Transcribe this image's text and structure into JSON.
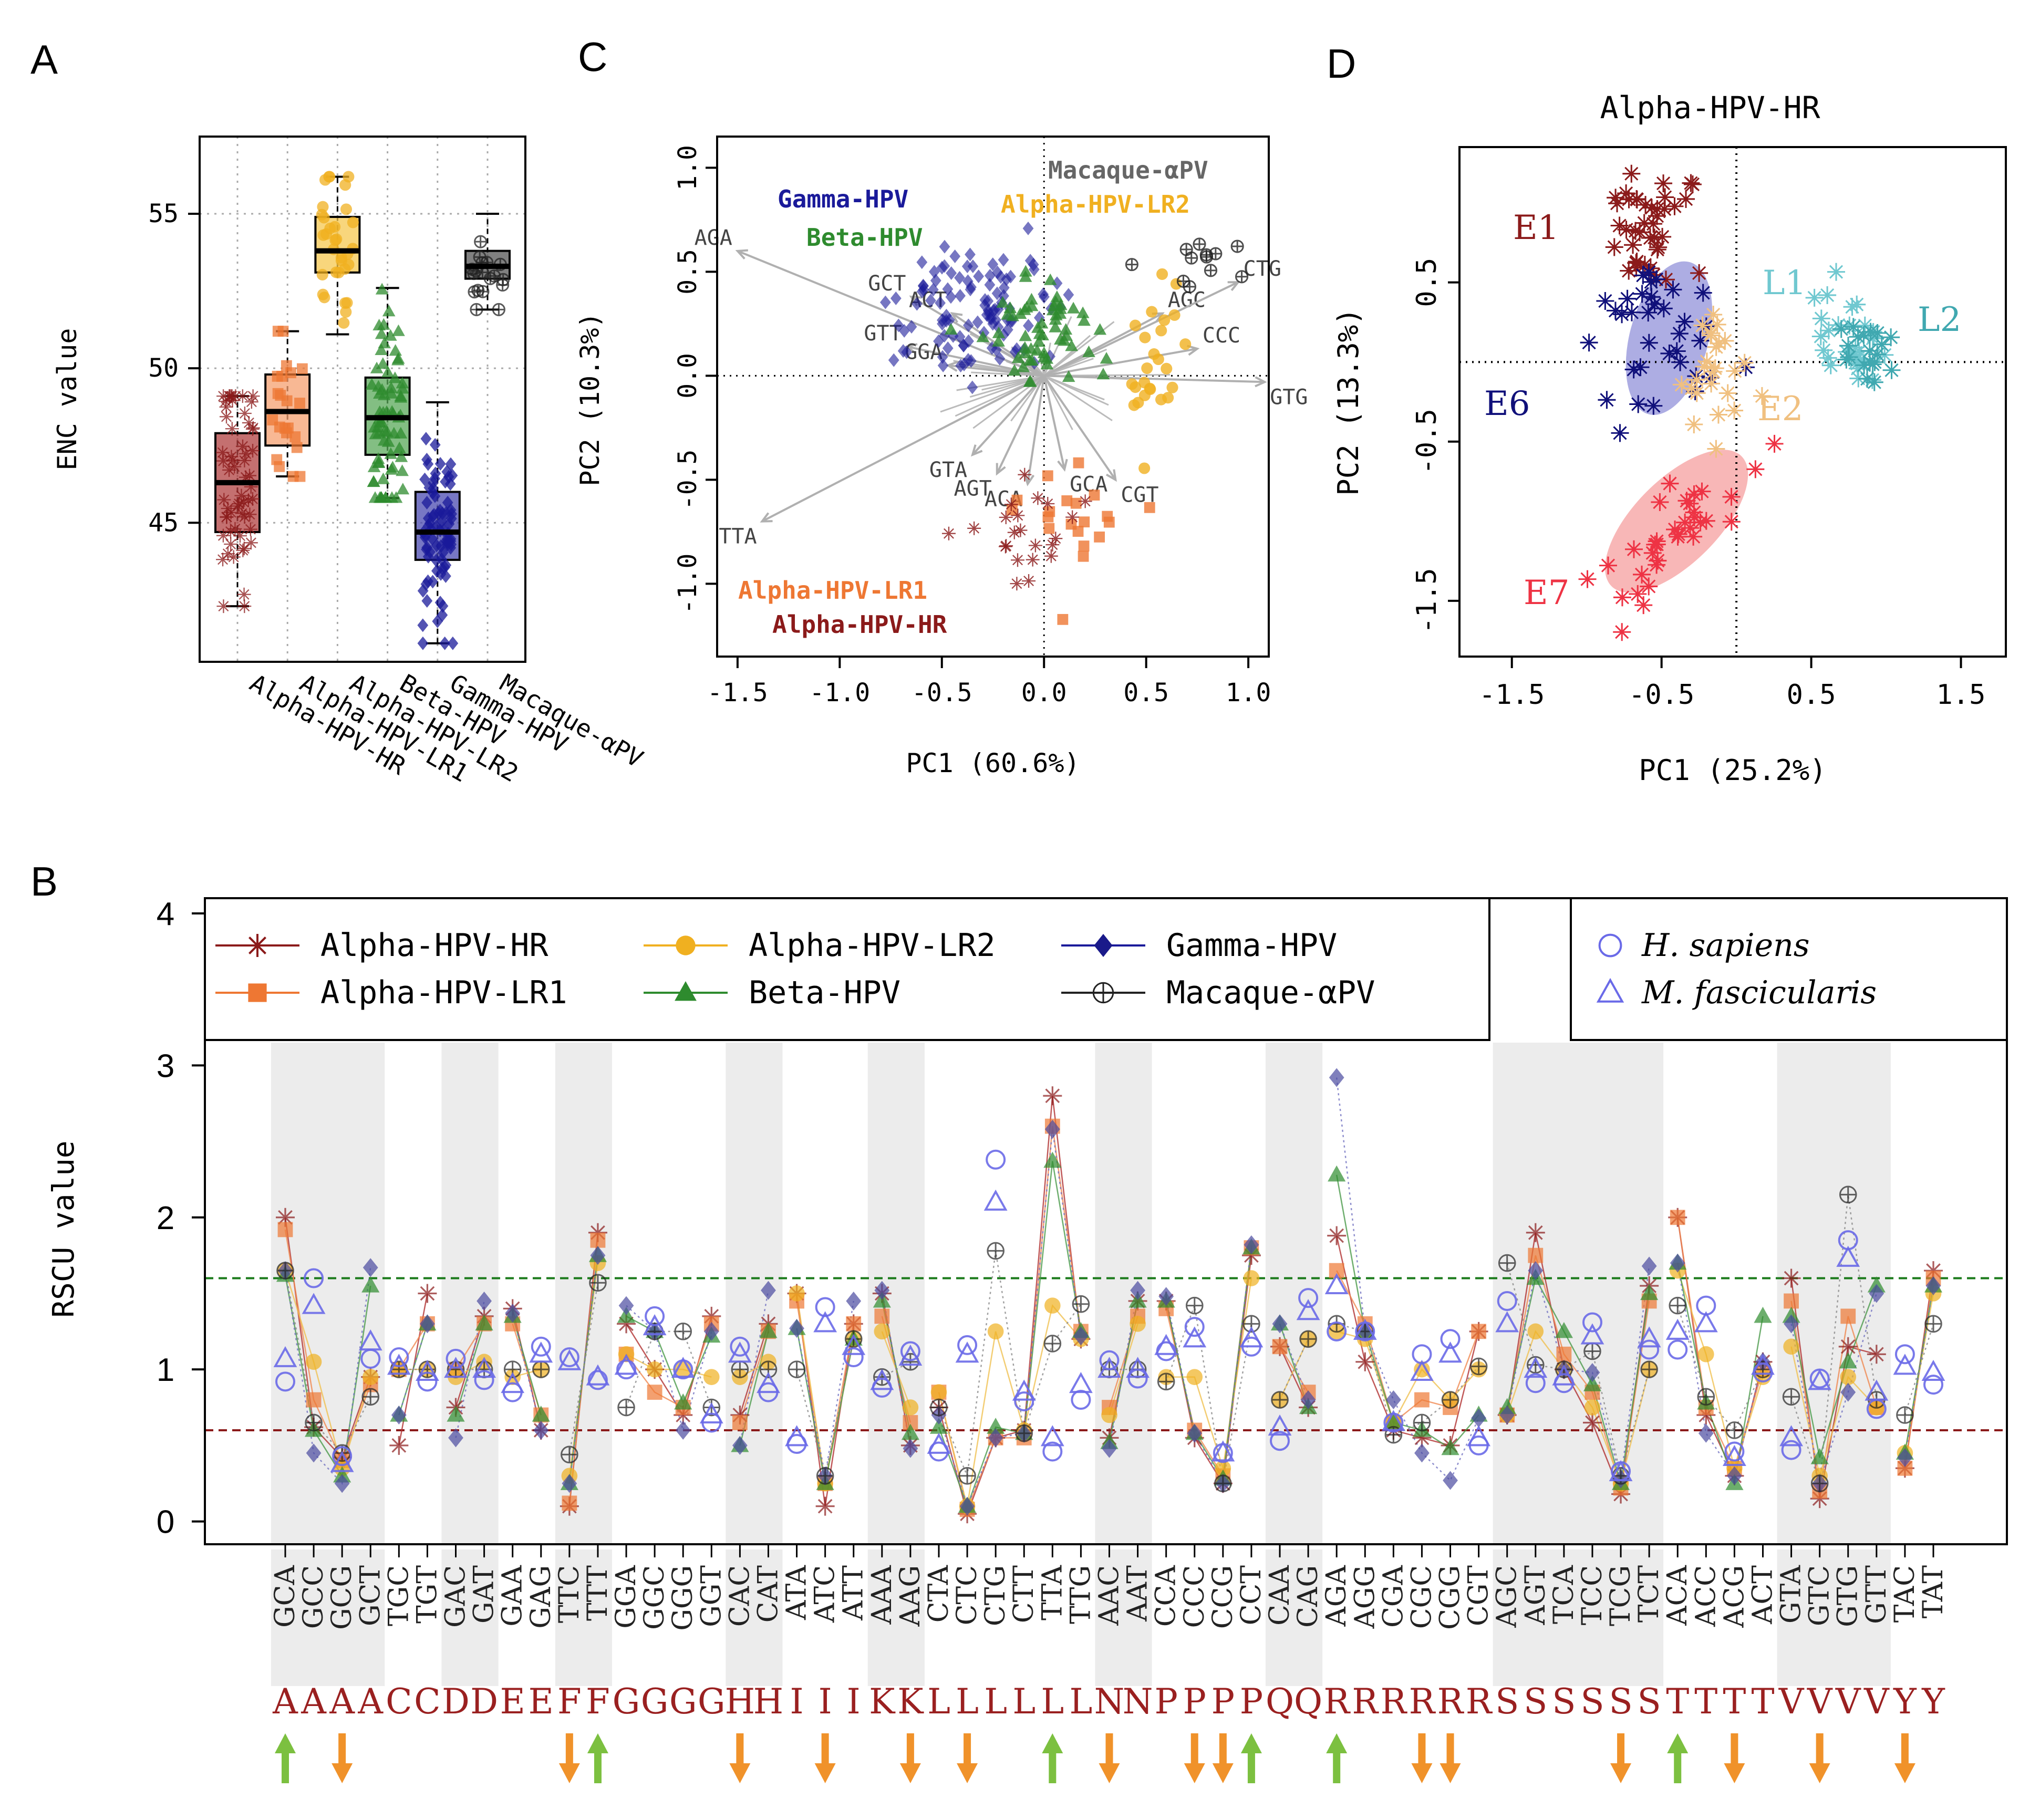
{
  "panels": {
    "A": "A",
    "B": "B",
    "C": "C",
    "D": "D"
  },
  "colors": {
    "hr": "#8b1a1a",
    "lr1": "#ee7733",
    "lr2": "#f0b020",
    "beta": "#2e8b2e",
    "gamma": "#1a1a9a",
    "mac": "#222222",
    "hs": "#6a6ae8",
    "e1": "#8b1a1a",
    "e6": "#10107a",
    "e7": "#ee3344",
    "e2": "#f0c080",
    "l1": "#70c8d0",
    "l2": "#40a8b0",
    "up": "#7cc040",
    "down": "#f0922a"
  },
  "panel_a": {
    "chart_data": {
      "type": "boxplot",
      "ylabel": "ENC value",
      "ylim": [
        40.5,
        57.5
      ],
      "yticks": [
        "45",
        "50",
        "55"
      ],
      "categories": [
        "Alpha-HPV-HR",
        "Alpha-HPV-LR1",
        "Alpha-HPV-LR2",
        "Beta-HPV",
        "Gamma-HPV",
        "Macaque-αPV"
      ],
      "series": [
        {
          "name": "Alpha-HPV-HR",
          "q1": 44.7,
          "median": 46.3,
          "q3": 47.9,
          "whisker_low": 42.3,
          "whisker_high": 49.1
        },
        {
          "name": "Alpha-HPV-LR1",
          "q1": 47.5,
          "median": 48.6,
          "q3": 49.8,
          "whisker_low": 46.5,
          "whisker_high": 51.2
        },
        {
          "name": "Alpha-HPV-LR2",
          "q1": 53.1,
          "median": 53.8,
          "q3": 54.9,
          "whisker_low": 51.1,
          "whisker_high": 56.2
        },
        {
          "name": "Beta-HPV",
          "q1": 47.2,
          "median": 48.4,
          "q3": 49.7,
          "whisker_low": 45.8,
          "whisker_high": 52.6
        },
        {
          "name": "Gamma-HPV",
          "q1": 43.8,
          "median": 44.7,
          "q3": 46.0,
          "whisker_low": 41.1,
          "whisker_high": 48.9
        },
        {
          "name": "Macaque-αPV",
          "q1": 52.9,
          "median": 53.3,
          "q3": 53.8,
          "whisker_low": 51.9,
          "whisker_high": 55.0
        }
      ]
    }
  },
  "panel_c": {
    "chart_data": {
      "type": "scatter",
      "xlabel": "PC1 (60.6%)",
      "ylabel": "PC2 (10.3%)",
      "xlim": [
        -1.6,
        1.1
      ],
      "ylim": [
        -1.35,
        1.15
      ],
      "xticks": [
        "-1.5",
        "-1.0",
        "-0.5",
        "0.0",
        "0.5",
        "1.0"
      ],
      "yticks": [
        "-1.0",
        "-0.5",
        "0.0",
        "0.5",
        "1.0"
      ],
      "group_labels": [
        "Gamma-HPV",
        "Beta-HPV",
        "Macaque-αPV",
        "Alpha-HPV-LR2",
        "Alpha-HPV-LR1",
        "Alpha-HPV-HR"
      ],
      "groups": [
        {
          "name": "Gamma-HPV",
          "cx": -0.35,
          "cy": 0.3,
          "sx": 0.2,
          "sy": 0.15,
          "n": 110
        },
        {
          "name": "Beta-HPV",
          "cx": -0.02,
          "cy": 0.2,
          "sx": 0.13,
          "sy": 0.13,
          "n": 60
        },
        {
          "name": "Alpha-HPV-LR2",
          "cx": 0.57,
          "cy": 0.0,
          "sx": 0.08,
          "sy": 0.2,
          "n": 25
        },
        {
          "name": "Macaque-αPV",
          "cx": 0.8,
          "cy": 0.55,
          "sx": 0.12,
          "sy": 0.08,
          "n": 12
        },
        {
          "name": "Alpha-HPV-LR1",
          "cx": 0.12,
          "cy": -0.65,
          "sx": 0.18,
          "sy": 0.15,
          "n": 20
        },
        {
          "name": "Alpha-HPV-HR",
          "cx": -0.05,
          "cy": -0.78,
          "sx": 0.13,
          "sy": 0.12,
          "n": 22
        }
      ],
      "arrows": [
        {
          "codon": "AGA",
          "x": -1.5,
          "y": 0.6
        },
        {
          "codon": "GCT",
          "x": -0.65,
          "y": 0.38
        },
        {
          "codon": "ACT",
          "x": -0.45,
          "y": 0.3
        },
        {
          "codon": "GTT",
          "x": -0.67,
          "y": 0.14
        },
        {
          "codon": "GGA",
          "x": -0.47,
          "y": 0.05
        },
        {
          "codon": "GTA",
          "x": -0.35,
          "y": -0.38
        },
        {
          "codon": "TTA",
          "x": -1.38,
          "y": -0.7
        },
        {
          "codon": "AGT",
          "x": -0.23,
          "y": -0.47
        },
        {
          "codon": "ACA",
          "x": -0.08,
          "y": -0.52
        },
        {
          "codon": "GCA",
          "x": 0.1,
          "y": -0.45
        },
        {
          "codon": "CGT",
          "x": 0.35,
          "y": -0.5
        },
        {
          "codon": "AGC",
          "x": 0.58,
          "y": 0.3
        },
        {
          "codon": "CTG",
          "x": 0.95,
          "y": 0.45
        },
        {
          "codon": "CCC",
          "x": 0.75,
          "y": 0.13
        },
        {
          "codon": "GTG",
          "x": 1.08,
          "y": -0.03
        }
      ]
    }
  },
  "panel_d": {
    "title": "Alpha-HPV-HR",
    "chart_data": {
      "type": "scatter",
      "xlabel": "PC1 (25.2%)",
      "ylabel": "PC2 (13.3%)",
      "xlim": [
        -1.85,
        1.8
      ],
      "ylim": [
        -1.85,
        1.35
      ],
      "xticks": [
        "-1.5",
        "-0.5",
        "0.5",
        "1.5"
      ],
      "yticks": [
        "-1.5",
        "-0.5",
        "0.5"
      ],
      "group_labels": [
        "E1",
        "E6",
        "E7",
        "E2",
        "L1",
        "L2"
      ],
      "groups": [
        {
          "name": "E1",
          "cx": -0.6,
          "cy": 0.85,
          "sx": 0.14,
          "sy": 0.18,
          "n": 40
        },
        {
          "name": "E6",
          "cx": -0.5,
          "cy": 0.15,
          "sx": 0.22,
          "sy": 0.28,
          "n": 35
        },
        {
          "name": "E2",
          "cx": -0.1,
          "cy": -0.1,
          "sx": 0.13,
          "sy": 0.18,
          "n": 25
        },
        {
          "name": "L1",
          "cx": 0.78,
          "cy": 0.15,
          "sx": 0.13,
          "sy": 0.13,
          "n": 30
        },
        {
          "name": "L2",
          "cx": 0.9,
          "cy": 0.05,
          "sx": 0.1,
          "sy": 0.12,
          "n": 20
        },
        {
          "name": "E7",
          "cx": -0.4,
          "cy": -1.1,
          "sx": 0.22,
          "sy": 0.25,
          "n": 35
        }
      ]
    }
  },
  "panel_b": {
    "legend_left": [
      {
        "label": "Alpha-HPV-HR",
        "color": "#8b1a1a",
        "marker": "star"
      },
      {
        "label": "Alpha-HPV-LR1",
        "color": "#ee7733",
        "marker": "square"
      },
      {
        "label": "Alpha-HPV-LR2",
        "color": "#f0b020",
        "marker": "circle"
      },
      {
        "label": "Beta-HPV",
        "color": "#2e8b2e",
        "marker": "triangle"
      },
      {
        "label": "Gamma-HPV",
        "color": "#1a1a9a",
        "marker": "diamond"
      },
      {
        "label": "Macaque-αPV",
        "color": "#222222",
        "marker": "oplus"
      }
    ],
    "legend_right": [
      {
        "label": "H. sapiens",
        "marker": "open-circle"
      },
      {
        "label": "M. fascicularis",
        "marker": "open-triangle"
      }
    ],
    "chart_data": {
      "type": "line",
      "ylabel": "RSCU value",
      "ylim": [
        -0.15,
        4.1
      ],
      "yticks": [
        "0",
        "1",
        "2",
        "3",
        "4"
      ],
      "thresholds": {
        "high": 1.6,
        "low": 0.6
      },
      "codons": [
        "GCA",
        "GCC",
        "GCG",
        "GCT",
        "TGC",
        "TGT",
        "GAC",
        "GAT",
        "GAA",
        "GAG",
        "TTC",
        "TTT",
        "GGA",
        "GGC",
        "GGG",
        "GGT",
        "CAC",
        "CAT",
        "ATA",
        "ATC",
        "ATT",
        "AAA",
        "AAG",
        "CTA",
        "CTC",
        "CTG",
        "CTT",
        "TTA",
        "TTG",
        "AAC",
        "AAT",
        "CCA",
        "CCC",
        "CCG",
        "CCT",
        "CAA",
        "CAG",
        "AGA",
        "AGG",
        "CGA",
        "CGC",
        "CGG",
        "CGT",
        "AGC",
        "AGT",
        "TCA",
        "TCC",
        "TCG",
        "TCT",
        "ACA",
        "ACC",
        "ACG",
        "ACT",
        "GTA",
        "GTC",
        "GTG",
        "GTT",
        "TAC",
        "TAT"
      ],
      "amino_acids": [
        "A",
        "A",
        "A",
        "A",
        "C",
        "C",
        "D",
        "D",
        "E",
        "E",
        "F",
        "F",
        "G",
        "G",
        "G",
        "G",
        "H",
        "H",
        "I",
        "I",
        "I",
        "K",
        "K",
        "L",
        "L",
        "L",
        "L",
        "L",
        "L",
        "N",
        "N",
        "P",
        "P",
        "P",
        "P",
        "Q",
        "Q",
        "R",
        "R",
        "R",
        "R",
        "R",
        "R",
        "S",
        "S",
        "S",
        "S",
        "S",
        "S",
        "T",
        "T",
        "T",
        "T",
        "V",
        "V",
        "V",
        "V",
        "Y",
        "Y"
      ],
      "shaded_amino_acids": [
        "A",
        "D",
        "F",
        "H",
        "K",
        "N",
        "Q",
        "S",
        "V"
      ],
      "arrows": [
        {
          "codon": "GCA",
          "dir": "up"
        },
        {
          "codon": "GCG",
          "dir": "down"
        },
        {
          "codon": "TTC",
          "dir": "down"
        },
        {
          "codon": "TTT",
          "dir": "up"
        },
        {
          "codon": "CAC",
          "dir": "down"
        },
        {
          "codon": "ATC",
          "dir": "down"
        },
        {
          "codon": "AAG",
          "dir": "down"
        },
        {
          "codon": "CTC",
          "dir": "down"
        },
        {
          "codon": "TTA",
          "dir": "up"
        },
        {
          "codon": "AAC",
          "dir": "down"
        },
        {
          "codon": "CCC",
          "dir": "down"
        },
        {
          "codon": "CCG",
          "dir": "down"
        },
        {
          "codon": "CCT",
          "dir": "up"
        },
        {
          "codon": "AGA",
          "dir": "up"
        },
        {
          "codon": "CGC",
          "dir": "down"
        },
        {
          "codon": "CGG",
          "dir": "down"
        },
        {
          "codon": "TCG",
          "dir": "down"
        },
        {
          "codon": "ACA",
          "dir": "up"
        },
        {
          "codon": "ACG",
          "dir": "down"
        },
        {
          "codon": "GTC",
          "dir": "down"
        },
        {
          "codon": "TAC",
          "dir": "down"
        }
      ],
      "series": [
        {
          "name": "Alpha-HPV-HR",
          "values": [
            2.0,
            0.62,
            0.42,
            0.95,
            0.5,
            1.5,
            0.75,
            1.35,
            1.4,
            0.6,
            0.1,
            1.9,
            1.3,
            1.0,
            0.7,
            1.35,
            0.7,
            1.3,
            1.5,
            0.1,
            1.3,
            1.5,
            0.5,
            0.75,
            0.05,
            0.55,
            0.6,
            2.8,
            1.2,
            0.55,
            1.45,
            1.45,
            0.55,
            0.25,
            1.75,
            1.15,
            0.75,
            1.88,
            1.05,
            0.6,
            0.55,
            0.5,
            1.25,
            0.7,
            1.9,
            1.0,
            0.65,
            0.18,
            1.55,
            2.0,
            0.7,
            0.3,
            1.05,
            1.6,
            0.15,
            1.15,
            1.1,
            0.35,
            1.65
          ]
        },
        {
          "name": "Alpha-HPV-LR1",
          "values": [
            1.92,
            0.8,
            0.4,
            0.9,
            1.0,
            1.3,
            1.0,
            1.3,
            1.3,
            0.7,
            0.12,
            1.85,
            1.1,
            0.85,
            0.75,
            1.3,
            0.65,
            1.25,
            1.45,
            0.25,
            1.3,
            1.35,
            0.65,
            0.85,
            0.08,
            0.55,
            0.55,
            2.6,
            1.25,
            0.75,
            1.35,
            1.4,
            0.6,
            0.3,
            1.8,
            1.15,
            0.85,
            1.65,
            1.3,
            0.65,
            0.8,
            0.75,
            1.25,
            0.7,
            1.75,
            1.1,
            0.85,
            0.22,
            1.45,
            2.0,
            0.75,
            0.35,
            1.0,
            1.45,
            0.2,
            1.35,
            0.75,
            0.35,
            1.6
          ]
        },
        {
          "name": "Alpha-HPV-LR2",
          "values": [
            1.65,
            1.05,
            0.35,
            0.95,
            1.0,
            1.0,
            0.95,
            1.05,
            0.95,
            1.0,
            0.3,
            1.7,
            1.1,
            1.0,
            1.0,
            0.95,
            0.95,
            1.05,
            1.5,
            0.25,
            1.2,
            1.25,
            0.75,
            0.85,
            0.1,
            1.25,
            0.6,
            1.42,
            1.2,
            0.7,
            1.3,
            0.95,
            0.95,
            0.35,
            1.6,
            0.8,
            1.2,
            1.25,
            1.2,
            0.65,
            1.0,
            0.8,
            1.0,
            0.7,
            1.25,
            1.0,
            0.75,
            0.25,
            1.0,
            1.65,
            1.1,
            0.35,
            0.95,
            1.15,
            0.3,
            0.95,
            0.75,
            0.45,
            1.5
          ]
        },
        {
          "name": "Beta-HPV",
          "values": [
            1.62,
            0.6,
            0.3,
            1.55,
            0.7,
            1.3,
            0.7,
            1.3,
            1.35,
            0.7,
            0.25,
            1.75,
            1.35,
            1.25,
            0.78,
            1.22,
            0.5,
            1.25,
            1.27,
            0.25,
            1.2,
            1.45,
            0.58,
            0.62,
            0.1,
            0.62,
            0.58,
            2.37,
            1.25,
            0.52,
            1.45,
            1.45,
            0.58,
            0.28,
            1.8,
            1.3,
            0.75,
            2.28,
            1.25,
            0.65,
            0.6,
            0.48,
            0.7,
            0.75,
            1.6,
            1.25,
            0.9,
            0.25,
            1.5,
            1.7,
            0.78,
            0.25,
            1.35,
            1.35,
            0.42,
            1.05,
            1.55,
            0.45,
            1.55
          ]
        },
        {
          "name": "Gamma-HPV",
          "values": [
            1.65,
            0.45,
            0.25,
            1.67,
            0.7,
            1.3,
            0.55,
            1.45,
            1.37,
            0.6,
            0.25,
            1.75,
            1.42,
            1.25,
            0.6,
            1.25,
            0.5,
            1.52,
            1.27,
            0.3,
            1.45,
            1.52,
            0.48,
            0.7,
            0.1,
            0.55,
            0.58,
            2.58,
            1.22,
            0.48,
            1.52,
            1.48,
            0.58,
            0.25,
            1.82,
            1.3,
            0.8,
            2.92,
            1.25,
            0.8,
            0.45,
            0.27,
            0.68,
            0.7,
            1.65,
            1.0,
            0.98,
            0.28,
            1.68,
            1.7,
            0.58,
            0.3,
            1.05,
            1.3,
            0.25,
            0.85,
            1.5,
            0.42,
            1.55
          ]
        },
        {
          "name": "Macaque-αPV",
          "values": [
            1.65,
            0.65,
            0.45,
            0.82,
            1.0,
            1.0,
            1.0,
            1.0,
            1.0,
            1.0,
            0.44,
            1.57,
            0.75,
            1.25,
            1.25,
            0.75,
            1.0,
            1.0,
            1.0,
            0.3,
            1.2,
            0.95,
            1.05,
            0.75,
            0.3,
            1.78,
            0.58,
            1.17,
            1.43,
            1.0,
            1.0,
            0.92,
            1.42,
            0.25,
            1.3,
            0.8,
            1.2,
            1.3,
            1.25,
            0.57,
            0.65,
            0.8,
            1.02,
            1.7,
            1.03,
            1.0,
            1.12,
            0.3,
            1.0,
            1.42,
            0.82,
            0.6,
            1.0,
            0.82,
            0.25,
            2.15,
            0.8,
            0.7,
            1.3
          ]
        },
        {
          "name": "H. sapiens",
          "values": [
            0.92,
            1.6,
            0.43,
            1.07,
            1.08,
            0.92,
            1.07,
            0.93,
            0.85,
            1.15,
            1.08,
            0.93,
            1.0,
            1.35,
            1.0,
            0.65,
            1.15,
            0.85,
            0.51,
            1.41,
            1.08,
            0.88,
            1.12,
            0.46,
            1.16,
            2.38,
            0.79,
            0.46,
            0.8,
            1.06,
            0.94,
            1.12,
            1.28,
            0.45,
            1.15,
            0.53,
            1.47,
            1.25,
            1.25,
            0.65,
            1.1,
            1.2,
            0.5,
            1.45,
            0.91,
            0.91,
            1.31,
            0.33,
            1.13,
            1.13,
            1.42,
            0.46,
            0.98,
            0.47,
            0.94,
            1.85,
            0.74,
            1.1,
            0.9
          ]
        },
        {
          "name": "M. fascicularis",
          "values": [
            1.07,
            1.42,
            0.38,
            1.18,
            1.02,
            0.98,
            1.0,
            1.0,
            0.9,
            1.1,
            1.05,
            0.95,
            1.02,
            1.28,
            1.0,
            0.7,
            1.1,
            0.9,
            0.55,
            1.3,
            1.15,
            0.92,
            1.08,
            0.5,
            1.1,
            2.1,
            0.85,
            0.55,
            0.9,
            1.0,
            1.0,
            1.15,
            1.2,
            0.45,
            1.2,
            0.62,
            1.38,
            1.55,
            1.25,
            0.65,
            0.98,
            1.1,
            0.55,
            1.3,
            1.0,
            0.95,
            1.22,
            0.32,
            1.2,
            1.25,
            1.3,
            0.42,
            1.02,
            0.55,
            0.92,
            1.73,
            0.85,
            1.02,
            0.98
          ]
        }
      ]
    }
  }
}
